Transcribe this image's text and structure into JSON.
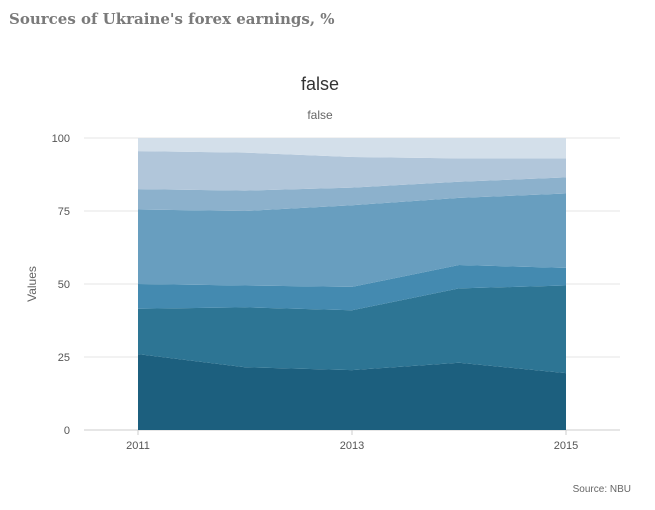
{
  "page_title": "Sources of Ukraine's forex earnings, %",
  "source": "Source: NBU",
  "chart_data": {
    "type": "area",
    "stacking": "normal",
    "title": "false",
    "subtitle": "false",
    "xlabel": "",
    "ylabel": "Values",
    "x": [
      2011,
      2012,
      2013,
      2014,
      2015
    ],
    "x_tick_labels": [
      "2011",
      "2013",
      "2015"
    ],
    "x_ticks": [
      2011,
      2013,
      2015
    ],
    "ylim": [
      0,
      100
    ],
    "y_ticks": [
      0,
      25,
      50,
      75,
      100
    ],
    "grid": true,
    "legend": "none",
    "series": [
      {
        "values": [
          26,
          21.5,
          20.5,
          23,
          19.5
        ],
        "color": "#1c5f7e"
      },
      {
        "values": [
          15.5,
          20.5,
          20.5,
          25.5,
          30
        ],
        "color": "#2d7594"
      },
      {
        "values": [
          8.5,
          7.5,
          8,
          8,
          6
        ],
        "color": "#448ab0"
      },
      {
        "values": [
          25.5,
          25.5,
          28,
          23,
          25.5
        ],
        "color": "#689ebf"
      },
      {
        "values": [
          7,
          7,
          6,
          5.5,
          5.5
        ],
        "color": "#8cb1cc"
      },
      {
        "values": [
          13,
          13,
          10.5,
          8,
          6.5
        ],
        "color": "#b1c6da"
      },
      {
        "values": [
          4.5,
          5,
          6.5,
          7,
          7
        ],
        "color": "#d3dfea"
      }
    ]
  }
}
